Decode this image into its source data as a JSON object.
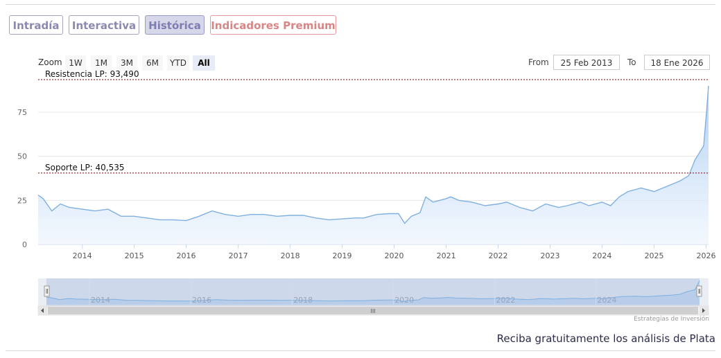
{
  "tabs": [
    {
      "label": "Intradía",
      "active": false
    },
    {
      "label": "Interactiva",
      "active": false
    },
    {
      "label": "Histórica",
      "active": true
    },
    {
      "label": "Indicadores Premium",
      "active": false,
      "premium": true
    }
  ],
  "zoom": {
    "label": "Zoom",
    "buttons": [
      "1W",
      "1M",
      "3M",
      "6M",
      "YTD",
      "All"
    ],
    "selected": "All"
  },
  "range": {
    "from_label": "From",
    "from_value": "25 Feb 2013",
    "to_label": "To",
    "to_value": "18 Ene 2026"
  },
  "credit": "Estrategias de Inversión",
  "promo": "Reciba gratuitamente los análisis de Plata",
  "navigator": {
    "year_labels": [
      "2014",
      "2016",
      "2018",
      "2020",
      "2022",
      "2024"
    ],
    "scroll_handle": "III"
  },
  "colors": {
    "line": "#7fb0e0",
    "area_top": "#aacbf2",
    "area_bottom": "#eef5fd",
    "level_line": "#8b0000",
    "tab_active_bg": "#d7d7ea",
    "premium": "#d98585"
  },
  "chart_data": {
    "type": "area",
    "title": "",
    "xlabel": "",
    "ylabel": "",
    "ylim": [
      0,
      93.5
    ],
    "y_ticks": [
      "0",
      "25",
      "50",
      "75"
    ],
    "x_ticks": [
      "2014",
      "2015",
      "2016",
      "2017",
      "2018",
      "2019",
      "2020",
      "2021",
      "2022",
      "2023",
      "2024",
      "2025",
      "2026"
    ],
    "grid": true,
    "annotations": [
      {
        "label": "Resistencia LP: 93,490",
        "value": 93.49
      },
      {
        "label": "Soporte LP: 40,535",
        "value": 40.535
      }
    ],
    "series": [
      {
        "x": [
          "2013-02-25",
          "2013-04-01",
          "2013-06-01",
          "2013-08-01",
          "2013-10-01",
          "2014-01-01",
          "2014-04-01",
          "2014-07-01",
          "2014-10-01",
          "2015-01-01",
          "2015-04-01",
          "2015-07-01",
          "2015-10-01",
          "2016-01-01",
          "2016-04-01",
          "2016-07-01",
          "2016-10-01",
          "2017-01-01",
          "2017-04-01",
          "2017-07-01",
          "2017-10-01",
          "2018-01-01",
          "2018-04-01",
          "2018-07-01",
          "2018-10-01",
          "2019-01-01",
          "2019-04-01",
          "2019-06-01",
          "2019-09-01",
          "2019-12-01",
          "2020-02-01",
          "2020-03-15",
          "2020-05-01",
          "2020-07-01",
          "2020-08-10",
          "2020-10-01",
          "2021-01-01",
          "2021-02-01",
          "2021-04-01",
          "2021-07-01",
          "2021-10-01",
          "2022-01-01",
          "2022-03-01",
          "2022-06-01",
          "2022-09-01",
          "2022-12-01",
          "2023-03-01",
          "2023-05-01",
          "2023-08-01",
          "2023-10-01",
          "2024-01-01",
          "2024-03-01",
          "2024-05-01",
          "2024-07-01",
          "2024-10-01",
          "2025-01-01",
          "2025-04-01",
          "2025-07-01",
          "2025-09-01",
          "2025-10-15",
          "2025-11-15",
          "2025-12-15",
          "2026-01-05",
          "2026-01-18"
        ],
        "values": [
          28,
          26,
          19,
          23,
          21,
          20,
          19,
          20,
          16,
          16,
          15,
          14,
          14,
          13.5,
          16,
          19,
          17,
          16,
          17,
          17,
          16,
          16.5,
          16.5,
          15,
          14,
          14.5,
          15,
          15,
          17,
          17.5,
          17.5,
          12,
          16,
          18,
          27,
          24,
          26,
          27,
          25,
          24,
          22,
          23,
          24,
          21,
          19,
          23,
          21,
          22,
          24,
          22,
          24,
          22,
          27,
          30,
          32,
          30,
          33,
          36,
          39,
          48,
          52,
          56,
          76,
          90
        ]
      }
    ]
  }
}
